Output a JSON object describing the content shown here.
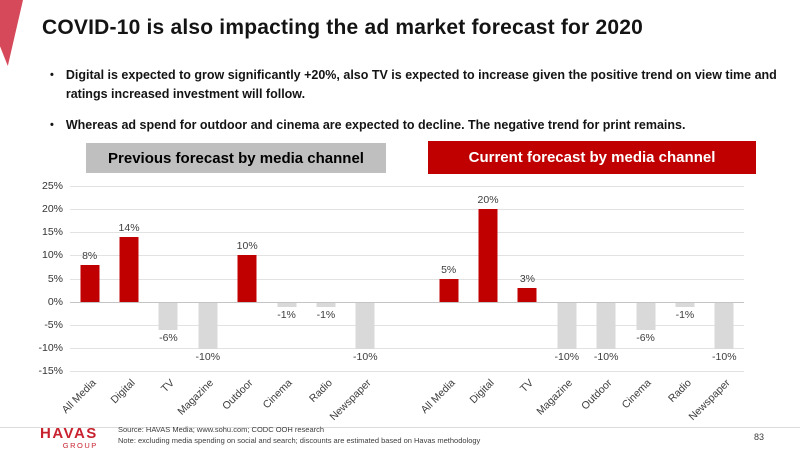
{
  "slide": {
    "title": "COVID-10 is also impacting the ad market forecast for 2020",
    "bullets": [
      "Digital is expected to grow significantly +20%, also TV is expected to increase given the positive trend on view time and ratings increased investment will follow.",
      "Whereas ad spend for outdoor and cinema are expected to decline. The negative trend for print remains."
    ],
    "page_number": "83"
  },
  "headers": {
    "previous": "Previous forecast by media channel",
    "current": "Current forecast by media channel"
  },
  "footer": {
    "source_line1": "Source: HAVAS Media; www.sohu.com; CODC OOH research",
    "source_line2": "Note: excluding media spending on social and search; discounts are estimated based on Havas methodology",
    "logo_primary": "HAVAS",
    "logo_secondary": "GROUP"
  },
  "colors": {
    "accent_red": "#c00000",
    "bar_gray": "#d9d9d9",
    "header_gray": "#bfbfbf",
    "wedge_red": "#d6495a",
    "logo_red": "#c9222f"
  },
  "chart_data": {
    "type": "bar",
    "title": "Previous vs current ad spend forecast by media channel, 2020",
    "ylim": [
      -15,
      25
    ],
    "ytick_step": 5,
    "ytick_labels": [
      "25%",
      "20%",
      "15%",
      "10%",
      "5%",
      "0%",
      "-5%",
      "-10%",
      "-15%"
    ],
    "grid": true,
    "legend": "none",
    "positive_color": "#c00000",
    "negative_color": "#d9d9d9",
    "groups": [
      {
        "name": "Previous forecast by media channel",
        "categories": [
          "All Media",
          "Digital",
          "TV",
          "Magazine",
          "Outdoor",
          "Cinema",
          "Radio",
          "Newspaper"
        ],
        "values": [
          8,
          14,
          -6,
          -10,
          10,
          -1,
          -1,
          -10
        ],
        "labels": [
          "8%",
          "14%",
          "-6%",
          "-10%",
          "10%",
          "-1%",
          "-1%",
          "-10%"
        ]
      },
      {
        "name": "Current forecast by media channel",
        "categories": [
          "All Media",
          "Digital",
          "TV",
          "Magazine",
          "Outdoor",
          "Cinema",
          "Radio",
          "Newspaper"
        ],
        "values": [
          5,
          20,
          3,
          -10,
          -10,
          -6,
          -1,
          -10
        ],
        "labels": [
          "5%",
          "20%",
          "3%",
          "-10%",
          "-10%",
          "-6%",
          "-1%",
          "-10%"
        ]
      }
    ]
  }
}
